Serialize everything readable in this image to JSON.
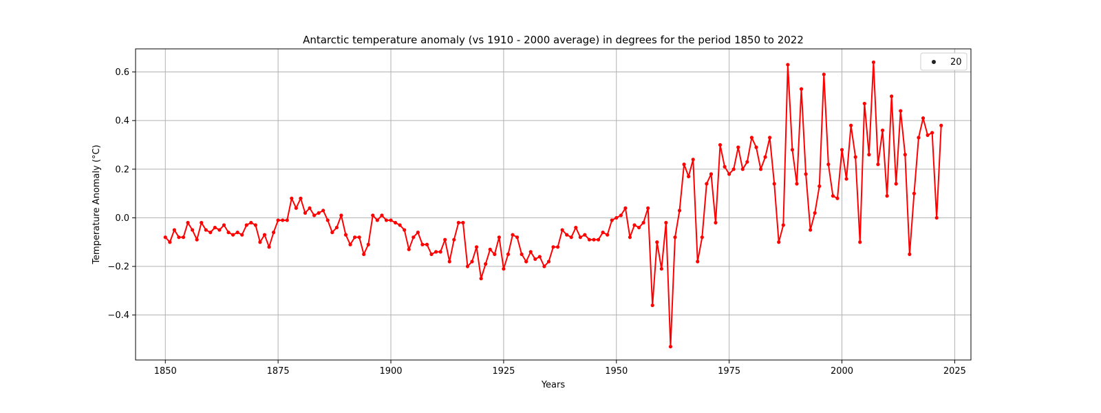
{
  "chart_data": {
    "type": "line",
    "title": "Antarctic temperature anomaly (vs 1910 - 2000 average) in degrees for the period 1850 to 2022",
    "xlabel": "Years",
    "ylabel": "Temperature Anomaly (°C)",
    "xlim": [
      1843.4,
      2028.6
    ],
    "ylim": [
      -0.585,
      0.695
    ],
    "xticks": [
      1850,
      1875,
      1900,
      1925,
      1950,
      1975,
      2000,
      2025
    ],
    "yticks": [
      -0.4,
      -0.2,
      0.0,
      0.2,
      0.4,
      0.6
    ],
    "xtick_labels": [
      "1850",
      "1875",
      "1900",
      "1925",
      "1950",
      "1975",
      "2000",
      "2025"
    ],
    "ytick_labels": [
      "−0.4",
      "−0.2",
      "0.0",
      "0.2",
      "0.4",
      "0.6"
    ],
    "grid": true,
    "legend": {
      "position": "top-right",
      "label": "20",
      "marker": "circle"
    },
    "series": [
      {
        "color": "#ff0000",
        "marker_color": "#ff0000",
        "x_start": 1850,
        "x_end": 2022,
        "values": [
          -0.08,
          -0.1,
          -0.05,
          -0.08,
          -0.08,
          -0.02,
          -0.05,
          -0.09,
          -0.02,
          -0.05,
          -0.06,
          -0.04,
          -0.05,
          -0.03,
          -0.06,
          -0.07,
          -0.06,
          -0.07,
          -0.03,
          -0.02,
          -0.03,
          -0.1,
          -0.07,
          -0.12,
          -0.06,
          -0.01,
          -0.01,
          -0.01,
          0.08,
          0.04,
          0.08,
          0.02,
          0.04,
          0.01,
          0.02,
          0.03,
          -0.01,
          -0.06,
          -0.04,
          0.01,
          -0.07,
          -0.11,
          -0.08,
          -0.08,
          -0.15,
          -0.11,
          0.01,
          -0.01,
          0.01,
          -0.01,
          -0.01,
          -0.02,
          -0.03,
          -0.05,
          -0.13,
          -0.08,
          -0.06,
          -0.11,
          -0.11,
          -0.15,
          -0.14,
          -0.14,
          -0.09,
          -0.18,
          -0.09,
          -0.02,
          -0.02,
          -0.2,
          -0.18,
          -0.12,
          -0.25,
          -0.19,
          -0.13,
          -0.15,
          -0.08,
          -0.21,
          -0.15,
          -0.07,
          -0.08,
          -0.15,
          -0.18,
          -0.14,
          -0.17,
          -0.16,
          -0.2,
          -0.18,
          -0.12,
          -0.12,
          -0.05,
          -0.07,
          -0.08,
          -0.04,
          -0.08,
          -0.07,
          -0.09,
          -0.09,
          -0.09,
          -0.06,
          -0.07,
          -0.01,
          0.0,
          0.01,
          0.04,
          -0.08,
          -0.03,
          -0.04,
          -0.02,
          0.04,
          -0.36,
          -0.1,
          -0.21,
          -0.02,
          -0.53,
          -0.08,
          0.03,
          0.22,
          0.17,
          0.24,
          -0.18,
          -0.08,
          0.14,
          0.18,
          -0.02,
          0.3,
          0.21,
          0.18,
          0.2,
          0.29,
          0.2,
          0.23,
          0.33,
          0.29,
          0.2,
          0.25,
          0.33,
          0.14,
          -0.1,
          -0.03,
          0.63,
          0.28,
          0.14,
          0.53,
          0.18,
          -0.05,
          0.02,
          0.13,
          0.59,
          0.22,
          0.09,
          0.08,
          0.28,
          0.16,
          0.38,
          0.25,
          -0.1,
          0.47,
          0.26,
          0.64,
          0.22,
          0.36,
          0.09,
          0.5,
          0.14,
          0.44,
          0.26,
          -0.15,
          0.1,
          0.33,
          0.41,
          0.34,
          0.35,
          0.0,
          0.38
        ]
      }
    ]
  }
}
